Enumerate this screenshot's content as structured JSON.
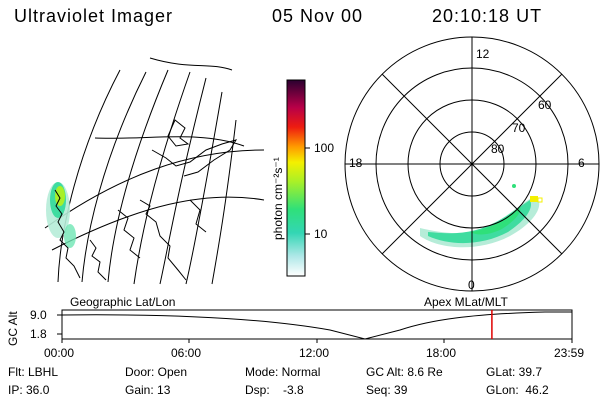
{
  "header": {
    "title": "Ultraviolet Imager",
    "date": "05 Nov 00",
    "time": "20:10:18 UT"
  },
  "colorbar": {
    "label": "photon cm⁻²s⁻¹",
    "tick_100": "100",
    "tick_10": "10"
  },
  "polar": {
    "mlt_labels": {
      "top": "12",
      "left": "18",
      "right": "6",
      "bottom": "0"
    },
    "lat_labels": [
      "60",
      "70",
      "80"
    ]
  },
  "captions": {
    "left": "Geographic Lat/Lon",
    "right": "Apex MLat/MLT"
  },
  "altitude_panel": {
    "axis_label": "GC Alt",
    "y_top": "9.0",
    "y_bottom": "1.8",
    "time_ticks": [
      "00:00",
      "06:00",
      "12:00",
      "18:00",
      "23:59"
    ],
    "current_time_fraction": 0.843
  },
  "info": {
    "row1": {
      "flt": "Flt: LBHL",
      "door": "Door: Open",
      "mode": "Mode: Normal",
      "gcalt": "GC Alt: 8.6 Re",
      "glat": "GLat:  39.7"
    },
    "row2": {
      "ip": "IP: 36.0",
      "gain": "Gain: 13",
      "dsp": "Dsp:    -3.8",
      "seq": "Seq: 39",
      "glon": "GLon:  46.2"
    }
  }
}
